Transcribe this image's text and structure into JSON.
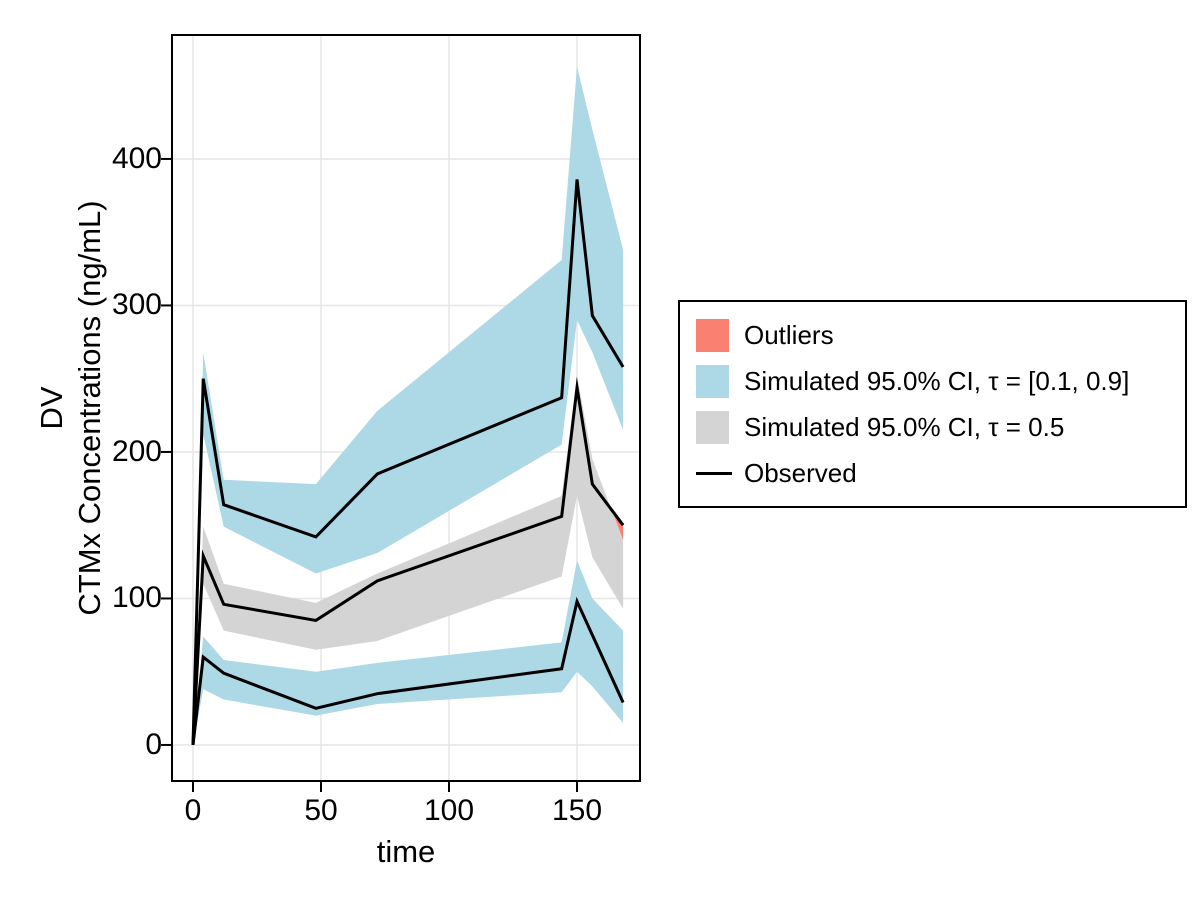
{
  "axes": {
    "x_label": "time",
    "y_label_line1": "DV",
    "y_label_line2": "CTMx Concentrations (ng/mL)"
  },
  "legend": {
    "position": "right-center",
    "items": [
      {
        "type": "patch",
        "color": "#FA8072",
        "label": "Outliers"
      },
      {
        "type": "patch",
        "color": "#ADD8E6",
        "label": "Simulated 95.0% CI, τ = [0.1, 0.9]"
      },
      {
        "type": "patch",
        "color": "#D4D4D4",
        "label": "Simulated 95.0% CI, τ = 0.5"
      },
      {
        "type": "line",
        "color": "#000000",
        "label": "Observed"
      }
    ]
  },
  "chart_data": {
    "type": "line",
    "title": "",
    "xlabel": "time",
    "ylabel": "DV / CTMx Concentrations (ng/mL)",
    "x": [
      0,
      4,
      12,
      48,
      72,
      144,
      150,
      156,
      168
    ],
    "series": [
      {
        "name": "Observed 90th percentile",
        "color": "#000000",
        "values": [
          0,
          250,
          164,
          142,
          185,
          237,
          386,
          293,
          258
        ]
      },
      {
        "name": "Observed median",
        "color": "#000000",
        "values": [
          0,
          129,
          96,
          85,
          112,
          156,
          244,
          178,
          150
        ]
      },
      {
        "name": "Observed 10th percentile",
        "color": "#000000",
        "values": [
          0,
          60,
          49,
          25,
          35,
          52,
          98,
          75,
          29
        ]
      }
    ],
    "bands": [
      {
        "name": "Simulated 95.0% CI, τ = 0.9",
        "color": "#ADD8E6",
        "hi": [
          0,
          268,
          181,
          178,
          228,
          331,
          463,
          420,
          338
        ],
        "lo": [
          0,
          212,
          149,
          117,
          131,
          205,
          290,
          268,
          215
        ]
      },
      {
        "name": "Simulated 95.0% CI, τ = 0.5",
        "color": "#D4D4D4",
        "hi": [
          0,
          149,
          110,
          97,
          117,
          170,
          252,
          195,
          140
        ],
        "lo": [
          0,
          110,
          78,
          65,
          71,
          115,
          170,
          128,
          93
        ]
      },
      {
        "name": "Simulated 95.0% CI, τ = 0.1",
        "color": "#ADD8E6",
        "hi": [
          0,
          74,
          58,
          50,
          56,
          70,
          126,
          100,
          78
        ],
        "lo": [
          0,
          38,
          31,
          20,
          28,
          36,
          50,
          40,
          15
        ]
      }
    ],
    "outlier_region": {
      "name": "Outliers",
      "points": [
        [
          163.6,
          160.4
        ],
        [
          168,
          140
        ],
        [
          168,
          150
        ]
      ]
    },
    "xlim": [
      -8.2,
      174.6
    ],
    "ylim": [
      -24.6,
      484.6
    ],
    "x_ticks": [
      0,
      50,
      100,
      150
    ],
    "y_ticks": [
      0,
      100,
      200,
      300,
      400
    ],
    "grid": true,
    "colors": {
      "ci_band": "#ADD8E6",
      "median_band": "#D4D4D4",
      "outliers": "#FA8072",
      "observed": "#000000",
      "grid": "#E6E6E6",
      "spine": "#000000"
    }
  }
}
